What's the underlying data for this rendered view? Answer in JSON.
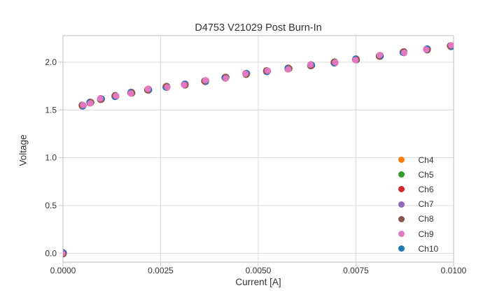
{
  "window": {
    "background": "#ffffff"
  },
  "chart_data": {
    "type": "scatter",
    "title": "D4753 V21029 Post Burn-In",
    "xlabel": "Current [A]",
    "ylabel": "Voltage",
    "xlim": [
      0.0,
      0.01
    ],
    "ylim": [
      -0.093,
      2.278
    ],
    "x_tick_values": [
      0.0,
      0.0025,
      0.005,
      0.0075,
      0.01
    ],
    "x_tick_labels": [
      "0.0000",
      "0.0025",
      "0.0050",
      "0.0075",
      "0.0100"
    ],
    "y_tick_values": [
      0.0,
      0.5,
      1.0,
      1.5,
      2.0
    ],
    "y_tick_labels": [
      "0.0",
      "0.5",
      "1.0",
      "1.5",
      "2.0"
    ],
    "grid": true,
    "legend_position": "lower right",
    "x": [
      0.0,
      0.0005,
      0.0007,
      0.00097,
      0.00134,
      0.00175,
      0.00218,
      0.00265,
      0.00312,
      0.00364,
      0.00416,
      0.00469,
      0.00522,
      0.00577,
      0.00635,
      0.00695,
      0.0075,
      0.00811,
      0.00872,
      0.00932,
      0.00993
    ],
    "series": [
      {
        "name": "Ch4",
        "color": "#ff7f0e",
        "values": [
          0.0,
          1.546,
          1.578,
          1.614,
          1.646,
          1.68,
          1.712,
          1.742,
          1.766,
          1.802,
          1.839,
          1.878,
          1.907,
          1.934,
          1.968,
          1.998,
          2.029,
          2.066,
          2.105,
          2.134,
          2.169
        ]
      },
      {
        "name": "Ch5",
        "color": "#2ca02c",
        "values": [
          0.0,
          1.546,
          1.578,
          1.614,
          1.646,
          1.68,
          1.712,
          1.742,
          1.766,
          1.802,
          1.839,
          1.878,
          1.907,
          1.934,
          1.968,
          1.998,
          2.029,
          2.066,
          2.105,
          2.134,
          2.169
        ]
      },
      {
        "name": "Ch6",
        "color": "#d62728",
        "values": [
          0.0,
          1.546,
          1.578,
          1.614,
          1.646,
          1.68,
          1.712,
          1.742,
          1.766,
          1.802,
          1.839,
          1.878,
          1.907,
          1.934,
          1.968,
          1.998,
          2.029,
          2.066,
          2.105,
          2.134,
          2.169
        ]
      },
      {
        "name": "Ch7",
        "color": "#9467bd",
        "values": [
          0.0,
          1.546,
          1.578,
          1.614,
          1.646,
          1.68,
          1.712,
          1.742,
          1.766,
          1.802,
          1.839,
          1.878,
          1.907,
          1.934,
          1.968,
          1.998,
          2.029,
          2.066,
          2.105,
          2.134,
          2.169
        ]
      },
      {
        "name": "Ch8",
        "color": "#8c564b",
        "values": [
          0.0,
          1.546,
          1.578,
          1.614,
          1.646,
          1.68,
          1.712,
          1.742,
          1.766,
          1.802,
          1.839,
          1.878,
          1.907,
          1.934,
          1.968,
          1.998,
          2.029,
          2.066,
          2.105,
          2.134,
          2.169
        ]
      },
      {
        "name": "Ch9",
        "color": "#e377c2",
        "values": [
          0.0,
          1.546,
          1.578,
          1.614,
          1.646,
          1.68,
          1.712,
          1.742,
          1.766,
          1.802,
          1.839,
          1.878,
          1.907,
          1.934,
          1.968,
          1.998,
          2.029,
          2.066,
          2.105,
          2.134,
          2.169
        ]
      },
      {
        "name": "Ch10",
        "color": "#1f77b4",
        "values": [
          0.0,
          1.546,
          1.578,
          1.614,
          1.646,
          1.68,
          1.712,
          1.742,
          1.766,
          1.802,
          1.839,
          1.878,
          1.907,
          1.934,
          1.968,
          1.998,
          2.029,
          2.066,
          2.105,
          2.134,
          2.169
        ]
      }
    ]
  },
  "styles": {
    "grid_color": "#d9d9d9",
    "border_color": "#c9c9c9",
    "text_color": "#333333",
    "marker_radius": 4.6
  }
}
